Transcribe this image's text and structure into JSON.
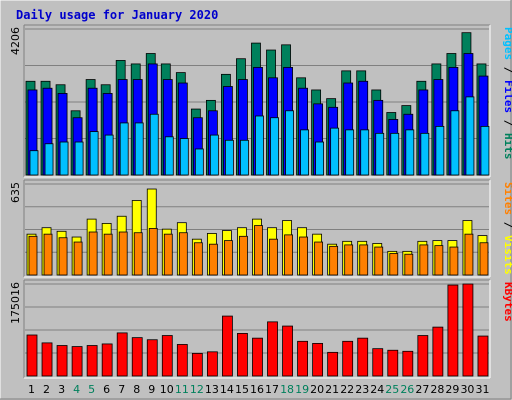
{
  "chart_data": {
    "type": "bar",
    "title": "Daily usage for January 2020",
    "categories": [
      "1",
      "2",
      "3",
      "4",
      "5",
      "6",
      "7",
      "8",
      "9",
      "10",
      "11",
      "12",
      "13",
      "14",
      "15",
      "16",
      "17",
      "18",
      "19",
      "20",
      "21",
      "22",
      "23",
      "24",
      "25",
      "26",
      "27",
      "28",
      "29",
      "30",
      "31"
    ],
    "weekend_days": [
      "4",
      "5",
      "11",
      "12",
      "18",
      "19",
      "25",
      "26"
    ],
    "colors": {
      "title": "#0000cc",
      "hits": "#00805c",
      "files": "#0000ff",
      "pages": "#00c0ff",
      "visits": "#ffff00",
      "sites": "#ff8000",
      "kbytes": "#ff0000",
      "day_normal": "#000000",
      "day_weekend": "#00805c"
    },
    "panels": [
      {
        "name": "hits_files_pages",
        "ymax_label": "4206",
        "ylim": [
          0,
          4206
        ],
        "right_label": [
          {
            "text": "Pages",
            "color": "#00c0ff"
          },
          {
            "text": " / ",
            "color": "#000000"
          },
          {
            "text": "Files",
            "color": "#0000ff"
          },
          {
            "text": " / ",
            "color": "#000000"
          },
          {
            "text": "Hits",
            "color": "#00805c"
          }
        ],
        "series": [
          {
            "name": "Hits",
            "values": [
              2700,
              2700,
              2600,
              1850,
              2750,
              2600,
              3300,
              3200,
              3500,
              3200,
              2950,
              1900,
              2150,
              2900,
              3350,
              3800,
              3600,
              3750,
              2800,
              2450,
              2200,
              3000,
              3000,
              2450,
              1800,
              2000,
              2700,
              3200,
              3500,
              4100,
              3200
            ]
          },
          {
            "name": "Files",
            "values": [
              2450,
              2500,
              2350,
              1650,
              2500,
              2350,
              2750,
              2750,
              3200,
              2750,
              2650,
              1650,
              1850,
              2550,
              2750,
              3100,
              2800,
              3100,
              2500,
              2050,
              1950,
              2650,
              2700,
              2150,
              1600,
              1750,
              2450,
              2750,
              3100,
              3500,
              2850
            ]
          },
          {
            "name": "Pages",
            "values": [
              700,
              900,
              950,
              950,
              1250,
              1150,
              1500,
              1500,
              1750,
              1100,
              1050,
              750,
              1150,
              1000,
              1000,
              1700,
              1650,
              1850,
              1300,
              950,
              1350,
              1300,
              1300,
              1200,
              1200,
              1300,
              1200,
              1400,
              1850,
              2250,
              1400
            ]
          }
        ]
      },
      {
        "name": "visits_sites",
        "ymax_label": "635",
        "ylim": [
          0,
          635
        ],
        "right_label": [
          {
            "text": "Sites",
            "color": "#ff8000"
          },
          {
            "text": " / ",
            "color": "#000000"
          },
          {
            "text": "Visits",
            "color": "#ffff00"
          }
        ],
        "series": [
          {
            "name": "Visits",
            "values": [
              285,
              330,
              305,
              265,
              390,
              360,
              410,
              520,
              600,
              320,
              365,
              250,
              290,
              310,
              330,
              390,
              330,
              380,
              330,
              285,
              215,
              235,
              235,
              220,
              165,
              165,
              235,
              240,
              240,
              380,
              275
            ]
          },
          {
            "name": "Sites",
            "values": [
              270,
              285,
              260,
              230,
              300,
              285,
              300,
              295,
              325,
              285,
              295,
              225,
              215,
              240,
              270,
              345,
              250,
              280,
              265,
              230,
              200,
              210,
              210,
              195,
              150,
              145,
              210,
              205,
              195,
              285,
              225
            ]
          }
        ]
      },
      {
        "name": "kbytes",
        "ymax_label": "175016",
        "ylim": [
          0,
          175016
        ],
        "right_label": [
          {
            "text": "KBytes",
            "color": "#ff0000"
          }
        ],
        "series": [
          {
            "name": "KBytes",
            "values": [
              78000,
              63000,
              58000,
              56000,
              58000,
              61000,
              82000,
              73000,
              69000,
              77000,
              60000,
              43000,
              46000,
              114000,
              81000,
              72000,
              103000,
              95000,
              66000,
              62000,
              45000,
              66000,
              72000,
              52000,
              49000,
              47000,
              77000,
              93000,
              173000,
              175000,
              76000
            ]
          }
        ]
      }
    ]
  }
}
